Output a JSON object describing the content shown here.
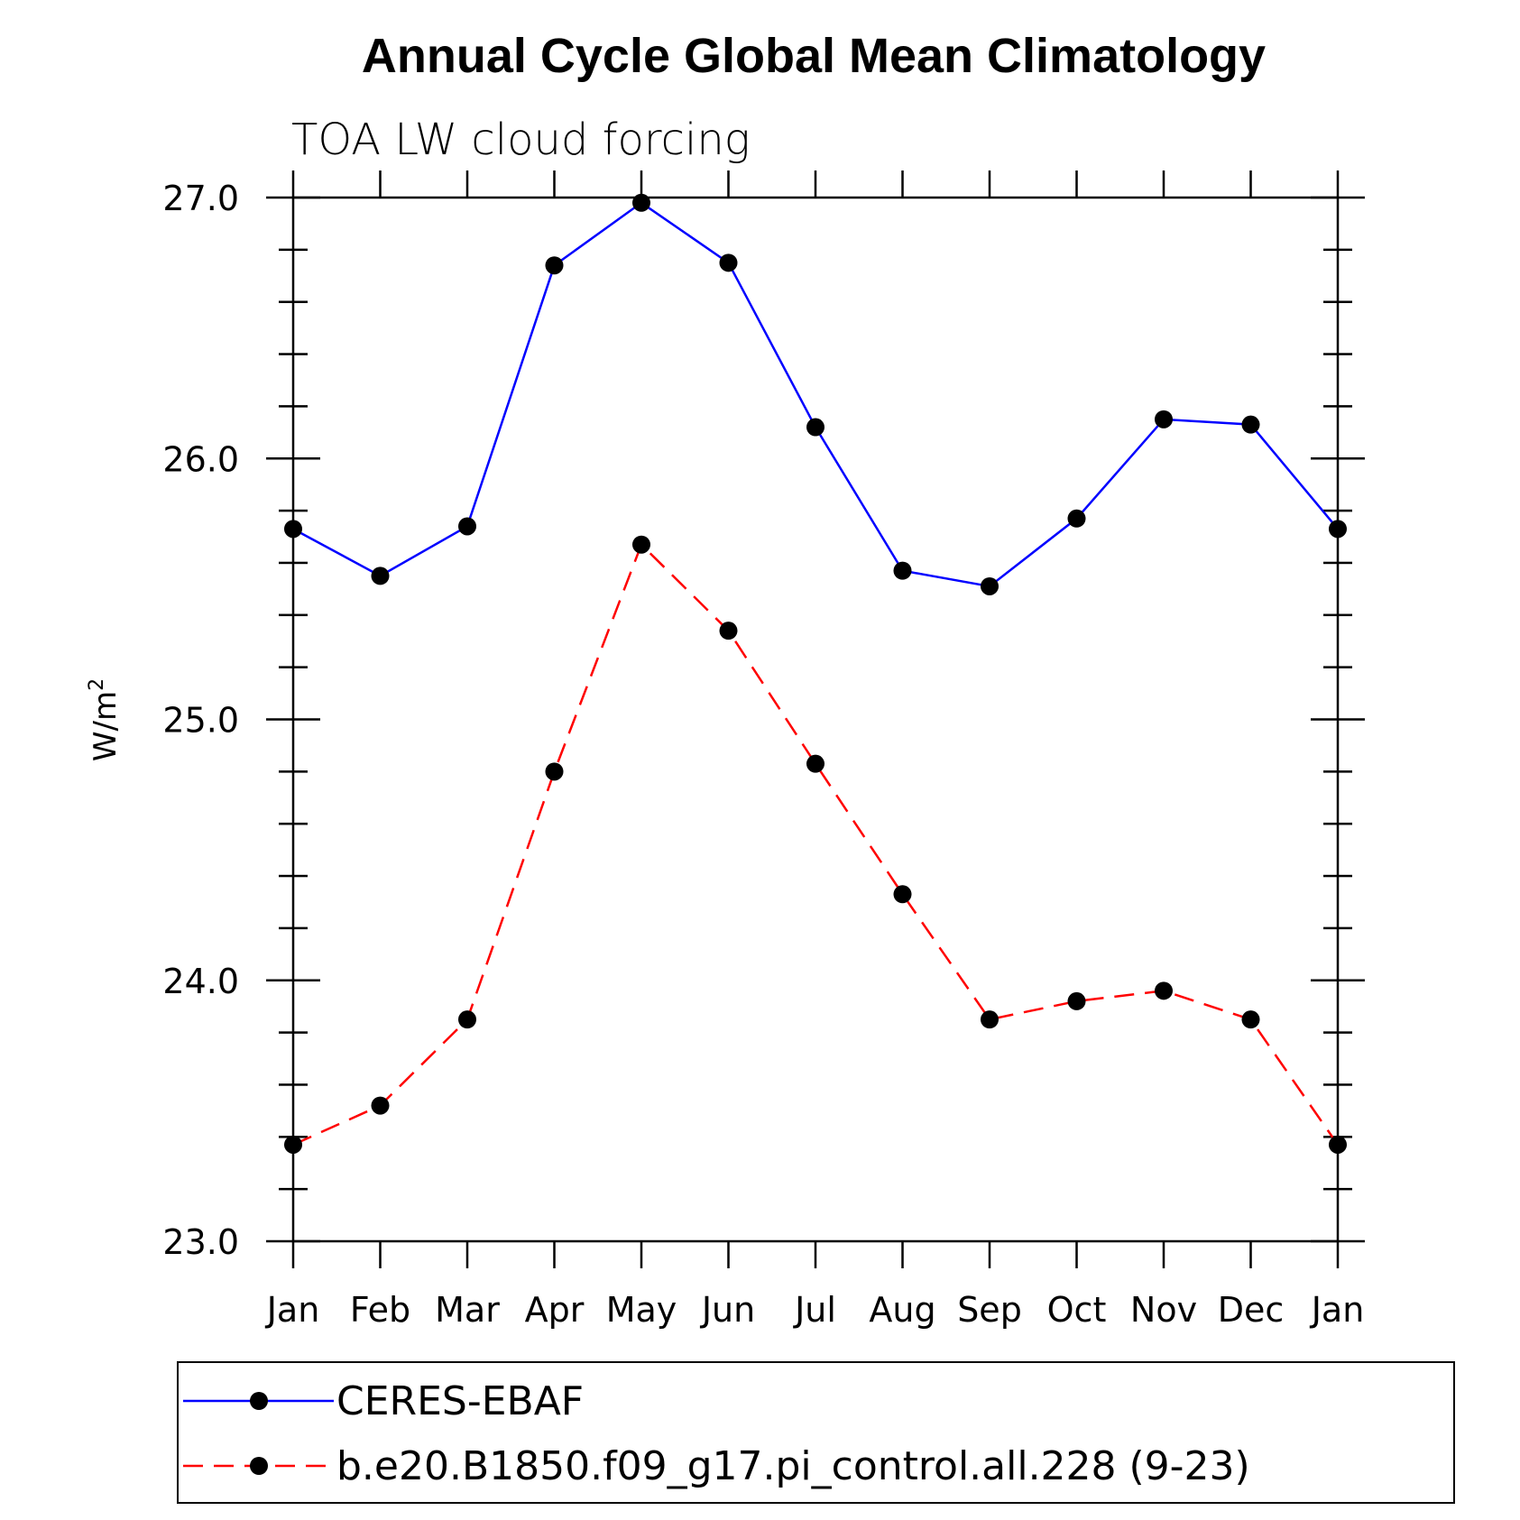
{
  "chart_data": {
    "type": "line",
    "title": "Annual Cycle Global Mean Climatology",
    "subtitle": "TOA LW cloud forcing",
    "ylabel": "W/m",
    "ylabel_superscript": "2",
    "xlabel": "",
    "categories": [
      "Jan",
      "Feb",
      "Mar",
      "Apr",
      "May",
      "Jun",
      "Jul",
      "Aug",
      "Sep",
      "Oct",
      "Nov",
      "Dec",
      "Jan"
    ],
    "ylim": [
      23.0,
      27.0
    ],
    "yticks": [
      "23.0",
      "24.0",
      "25.0",
      "26.0",
      "27.0"
    ],
    "grid": false,
    "legend_position": "bottom",
    "series": [
      {
        "name": "CERES-EBAF",
        "color": "#0000ff",
        "dash": "solid",
        "values": [
          25.73,
          25.55,
          25.74,
          26.74,
          26.98,
          26.75,
          26.12,
          25.57,
          25.51,
          25.77,
          26.15,
          26.13,
          25.73
        ]
      },
      {
        "name": "b.e20.B1850.f09_g17.pi_control.all.228 (9-23)",
        "color": "#ff0000",
        "dash": "dashed",
        "values": [
          23.37,
          23.52,
          23.85,
          24.8,
          25.67,
          25.34,
          24.83,
          24.33,
          23.85,
          23.92,
          23.96,
          23.85,
          23.37
        ]
      }
    ]
  }
}
